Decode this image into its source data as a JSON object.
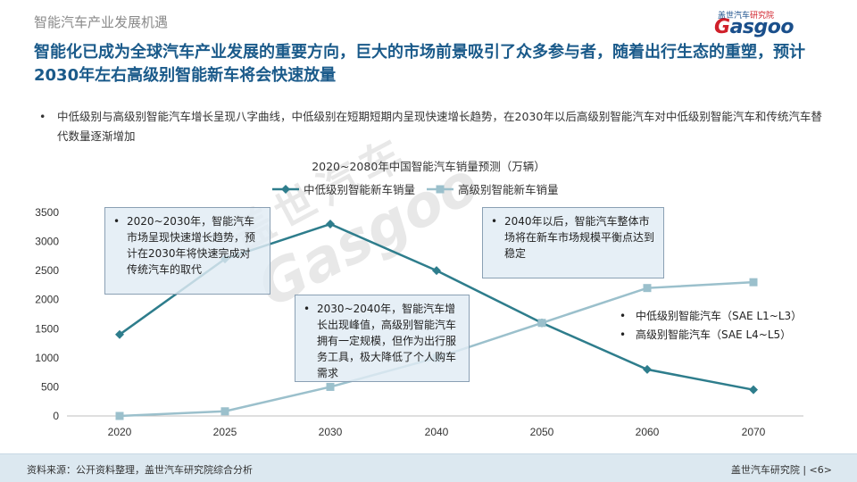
{
  "header": {
    "section_label": "智能汽车产业发展机遇",
    "headline": "智能化已成为全球汽车产业发展的重要方向，巨大的市场前景吸引了众多参与者，随着出行生态的重塑，预计2030年左右高级别智能新车将会快速放量",
    "logo_top_blue": "盖世汽车",
    "logo_top_red": "研究院",
    "logo_main_g": "G",
    "logo_main_rest": "asgoo"
  },
  "bullet": {
    "marker": "•",
    "text": "中低级别与高级别智能汽车增长呈现八字曲线，中低级别在短期短期内呈现快速增长趋势，在2030年以后高级别智能汽车对中低级别智能汽车和传统汽车替代数量逐渐增加"
  },
  "chart_data": {
    "type": "line",
    "title": "2020~2080年中国智能汽车销量预测（万辆）",
    "x": [
      "2020",
      "2025",
      "2030",
      "2040",
      "2050",
      "2060",
      "2070"
    ],
    "series": [
      {
        "name": "中低级别智能新车销量",
        "values": [
          1400,
          2700,
          3300,
          2500,
          1600,
          800,
          450
        ],
        "color": "#2e7d8c"
      },
      {
        "name": "高级别智能新车销量",
        "values": [
          0,
          80,
          500,
          1000,
          1600,
          2200,
          2300
        ],
        "color": "#9bc0cc"
      }
    ],
    "ylim": [
      0,
      3500
    ],
    "yticks": [
      "0",
      "500",
      "1000",
      "1500",
      "2000",
      "2500",
      "3000",
      "3500"
    ],
    "legend": "top-center",
    "grid": false
  },
  "notes": [
    {
      "marker": "•",
      "text": "2020~2030年，智能汽车市场呈现快速增长趋势，预计在2030年将快速完成对传统汽车的取代"
    },
    {
      "marker": "•",
      "text": "2030~2040年，智能汽车增长出现峰值，高级别智能汽车拥有一定规模，但作为出行服务工具，极大降低了个人购车需求"
    },
    {
      "marker": "•",
      "text": "2040年以后，智能汽车整体市场将在新车市场规模平衡点达到稳定"
    }
  ],
  "level_legend": [
    {
      "marker": "•",
      "text": "中低级别智能汽车（SAE L1~L3）"
    },
    {
      "marker": "•",
      "text": "高级别智能汽车（SAE L4~L5）"
    }
  ],
  "watermark": {
    "line1": "盖世汽车",
    "line2": "Gasgoo"
  },
  "footer": {
    "source": "资料来源：公开资料整理，盖世汽车研究院综合分析",
    "org": "盖世汽车研究院",
    "page": "|  <6>"
  }
}
